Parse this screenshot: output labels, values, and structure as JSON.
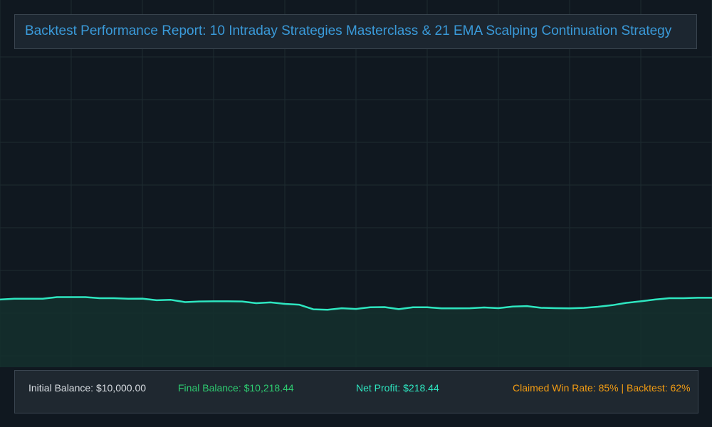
{
  "title": "Backtest Performance Report: 10 Intraday Strategies Masterclass & 21 EMA Scalping Continuation Strategy",
  "stats": {
    "initial_balance": "Initial Balance: $10,000.00",
    "final_balance": "Final Balance: $10,218.44",
    "net_profit": "Net Profit: $218.44",
    "win_rate": "Claimed Win Rate: 85% | Backtest: 62%"
  },
  "colors": {
    "background": "#101820",
    "title": "#3a9ad9",
    "line": "#2ee6c0",
    "area": "#14302e",
    "initial": "#d8dde2",
    "final": "#2ecc71",
    "net": "#2ee6c0",
    "winrate": "#f39c12",
    "grid": "#1e2b31"
  },
  "chart_data": {
    "type": "area",
    "title": "Backtest Performance Report: 10 Intraday Strategies Masterclass & 21 EMA Scalping Continuation Strategy",
    "xlabel": "",
    "ylabel": "",
    "grid": true,
    "x": [
      0,
      2,
      4,
      6,
      8,
      10,
      12,
      14,
      16,
      18,
      20,
      22,
      24,
      26,
      28,
      30,
      32,
      34,
      36,
      38,
      40,
      42,
      44,
      46,
      48,
      50,
      52,
      54,
      56,
      58,
      60,
      62,
      64,
      66,
      68,
      70,
      72,
      74,
      76,
      78,
      80,
      82,
      84,
      86,
      88,
      90,
      92,
      94,
      96,
      98,
      100
    ],
    "series": [
      {
        "values": [
          10140,
          10175,
          10175,
          10175,
          10245,
          10245,
          10245,
          10200,
          10200,
          10175,
          10180,
          10110,
          10130,
          10030,
          10060,
          10065,
          10065,
          10060,
          9985,
          10020,
          9955,
          9920,
          9720,
          9700,
          9765,
          9735,
          9810,
          9815,
          9725,
          9810,
          9810,
          9760,
          9760,
          9765,
          9800,
          9770,
          9840,
          9860,
          9785,
          9770,
          9760,
          9780,
          9830,
          9900,
          10000,
          10065,
          10140,
          10200,
          10200,
          10220,
          10218
        ]
      }
    ]
  }
}
